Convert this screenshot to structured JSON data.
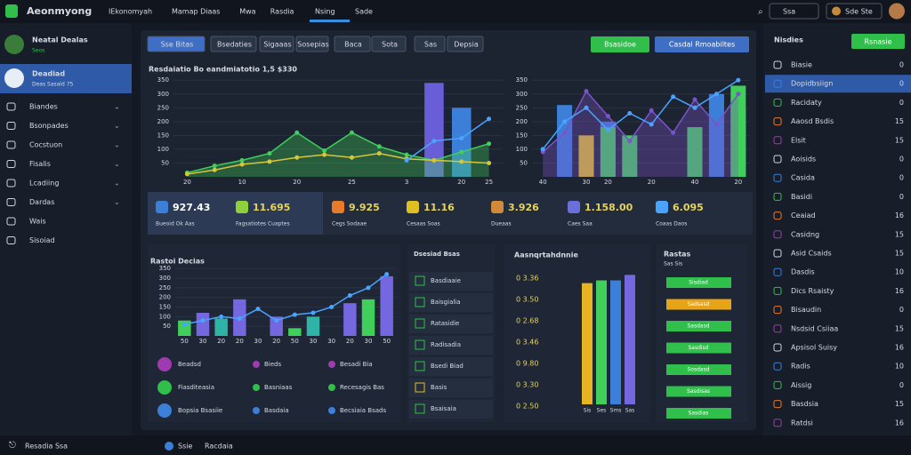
{
  "topbar": {
    "brand": "Aeonmyong",
    "menu": [
      "IEkonomyah",
      "Mamap Diaas",
      "Mwa",
      "Rasdia",
      "Nsing",
      "Sade"
    ],
    "active": 4,
    "search": "Ssa",
    "user": "Sde Ste"
  },
  "sidebar": {
    "profile_name": "Neatal Dealas",
    "profile_sub": "Seos",
    "active_title": "Deadiad",
    "active_sub": "Deas Sasald 75",
    "items": [
      "Biandes",
      "Bsonpades",
      "Cocstuon",
      "Fisalis",
      "Lcadiing",
      "Dardas",
      "Wais",
      "Sisoiad"
    ]
  },
  "toolbar": {
    "buttons": [
      "Sse Bitas",
      "Bsedaties",
      "Sigaaas",
      "Sosepias",
      "Baca",
      "Sota",
      "Sas",
      "Depsia"
    ],
    "actions": [
      "Bsasidoe",
      "Casdal Rmoabiltes"
    ]
  },
  "chart_a": {
    "type": "combo",
    "title": "Resdaiatio Bo eandmiatotio 1,5 $330",
    "categories": [
      "20",
      null,
      "10",
      null,
      "20",
      null,
      "25",
      null,
      "3",
      null,
      "20",
      "25"
    ],
    "ylim": [
      0,
      370
    ],
    "yticks": [
      50,
      100,
      150,
      200,
      250,
      300,
      350
    ],
    "series": [
      {
        "name": "Purple",
        "kind": "bar",
        "color": "#6a5ed8",
        "values": [
          null,
          null,
          null,
          null,
          null,
          null,
          null,
          null,
          null,
          340,
          null,
          null
        ]
      },
      {
        "name": "Blue",
        "kind": "bar",
        "color": "#3b7fd9",
        "values": [
          null,
          null,
          null,
          null,
          null,
          null,
          null,
          null,
          null,
          null,
          250,
          null
        ]
      },
      {
        "name": "Green",
        "kind": "area",
        "color": "#3fcf5a",
        "values": [
          15,
          40,
          60,
          85,
          160,
          95,
          160,
          110,
          80,
          60,
          90,
          120
        ]
      },
      {
        "name": "Yellow",
        "kind": "line",
        "color": "#d8c63a",
        "values": [
          10,
          25,
          45,
          55,
          70,
          80,
          70,
          85,
          65,
          60,
          55,
          50
        ]
      },
      {
        "name": "Sky",
        "kind": "line",
        "color": "#4aa3ff",
        "values": [
          null,
          null,
          null,
          null,
          null,
          null,
          null,
          null,
          60,
          130,
          140,
          210
        ]
      }
    ]
  },
  "chart_b": {
    "type": "combo",
    "categories": [
      "40",
      null,
      "30",
      "20",
      null,
      "20",
      null,
      "40",
      null,
      "20"
    ],
    "ylim": [
      0,
      370
    ],
    "yticks": [
      50,
      100,
      150,
      200,
      250,
      300,
      350
    ],
    "series": [
      {
        "name": "Bars",
        "kind": "bar",
        "color": "#3b7fd9",
        "values": [
          null,
          260,
          null,
          200,
          null,
          null,
          null,
          null,
          300,
          250
        ]
      },
      {
        "name": "Yellow bars",
        "kind": "bar",
        "color": "#e0c020",
        "values": [
          null,
          null,
          150,
          null,
          null,
          null,
          null,
          null,
          null,
          null
        ]
      },
      {
        "name": "Green bars",
        "kind": "bar",
        "color": "#3fcf5a",
        "values": [
          null,
          null,
          null,
          180,
          150,
          null,
          null,
          180,
          null,
          330
        ]
      },
      {
        "name": "Area",
        "kind": "area",
        "color": "#7a55c9",
        "values": [
          90,
          160,
          310,
          220,
          130,
          240,
          160,
          280,
          190,
          300
        ]
      },
      {
        "name": "Line",
        "kind": "line",
        "color": "#4aa3ff",
        "values": [
          100,
          200,
          250,
          170,
          230,
          190,
          290,
          250,
          300,
          350
        ]
      }
    ]
  },
  "stats": [
    {
      "value": "927.43",
      "label": "Bueoid Ok Aas"
    },
    {
      "value": "11.695",
      "label": "Fagsatiotes Cuaptes"
    },
    {
      "value": "9.925",
      "label": "Cegs Sodaae"
    },
    {
      "value": "11.16",
      "label": "Cesaas Soas"
    },
    {
      "value": "3.926",
      "label": "Dueaas"
    },
    {
      "value": "1.158.00",
      "label": "Caes Saa"
    },
    {
      "value": "6.095",
      "label": "Coaas Daos"
    }
  ],
  "chart_c": {
    "type": "combo",
    "title": "Rastoi Decias",
    "categories": [
      "50",
      "30",
      "20",
      "20",
      "30",
      "20",
      "50",
      "30",
      "30",
      "20",
      "30",
      "50"
    ],
    "ylim": [
      0,
      360
    ],
    "yticks": [
      50,
      100,
      150,
      200,
      250,
      300,
      350
    ],
    "series": [
      {
        "name": "Green",
        "kind": "bar",
        "color": "#3fcf5a",
        "values": [
          80,
          null,
          null,
          null,
          null,
          null,
          40,
          null,
          null,
          null,
          190,
          null
        ]
      },
      {
        "name": "Purple",
        "kind": "bar",
        "color": "#7467e0",
        "values": [
          null,
          120,
          null,
          190,
          null,
          100,
          null,
          null,
          null,
          170,
          null,
          310
        ]
      },
      {
        "name": "Teal",
        "kind": "bar",
        "color": "#2fb3a6",
        "values": [
          null,
          null,
          90,
          null,
          null,
          null,
          null,
          100,
          null,
          null,
          null,
          null
        ]
      },
      {
        "name": "Line",
        "kind": "line",
        "color": "#4aa3ff",
        "values": [
          60,
          80,
          100,
          90,
          140,
          80,
          110,
          120,
          150,
          210,
          250,
          320
        ]
      }
    ]
  },
  "mini_list": [
    {
      "a": "Beadsd",
      "b": "Bieds",
      "c": "Besadi Bia"
    },
    {
      "a": "Fiasditeasia",
      "b": "Basniaas",
      "c": "Recesagis Bas"
    },
    {
      "a": "Bopsia Bsasiie",
      "b": "Basdaia",
      "c": "Becsiaia Bsads"
    }
  ],
  "list_panel": {
    "title": "Dsesiad Bsas",
    "items": [
      "Basdiaaie",
      "Baisgialia",
      "Ratasidie",
      "Radisadia",
      "Bsedi Biad",
      "Basis",
      "Bsaisaia"
    ]
  },
  "chart_d": {
    "type": "bar",
    "title": "Aasnqrtahdnnie",
    "labels": [
      "0 3.36",
      "0 3.50",
      "0 2.68",
      "0 3.46",
      "0 9.80",
      "0 3.30",
      "0 2.50"
    ],
    "categories": [
      "Sis",
      "Ses",
      "Sms",
      "Sas"
    ],
    "colors": [
      "#e6b422",
      "#3fcf5a",
      "#3b7fd9",
      "#7467e0"
    ],
    "ylim": [
      0,
      100
    ],
    "values": [
      88,
      90,
      90,
      94
    ]
  },
  "progress": {
    "title": "Rastas",
    "sub": "Sas Sis",
    "items": [
      {
        "text": "Sisdiad",
        "color": "#2fbf4a"
      },
      {
        "text": "Sadsasd",
        "color": "#e8a417"
      },
      {
        "text": "Sasdasd",
        "color": "#2fbf4a"
      },
      {
        "text": "Sasdisd",
        "color": "#2fbf4a"
      },
      {
        "text": "Sosdasd",
        "color": "#2fbf4a"
      },
      {
        "text": "Sasdisas",
        "color": "#2fbf4a"
      },
      {
        "text": "Sasdias",
        "color": "#2fbf4a"
      }
    ]
  },
  "right": {
    "title": "Nisdies",
    "button": "Rsnasie",
    "items": [
      {
        "t": "Biasie",
        "n": "0"
      },
      {
        "t": "Dopidbsiign",
        "n": "0"
      },
      {
        "t": "Racidaty",
        "n": "0"
      },
      {
        "t": "Aaosd Bsdis",
        "n": "15"
      },
      {
        "t": "Elsit",
        "n": "15"
      },
      {
        "t": "Aoisids",
        "n": "0"
      },
      {
        "t": "Casida",
        "n": "0"
      },
      {
        "t": "Basidi",
        "n": "0"
      },
      {
        "t": "Ceaiad",
        "n": "16"
      },
      {
        "t": "Casidng",
        "n": "15"
      },
      {
        "t": "Asid Csaids",
        "n": "15"
      },
      {
        "t": "Dasdis",
        "n": "10"
      },
      {
        "t": "Dics Rsaisty",
        "n": "16"
      },
      {
        "t": "Bisaudin",
        "n": "0"
      },
      {
        "t": "Nsdsid Csiiaa",
        "n": "15"
      },
      {
        "t": "Apsisol Suisy",
        "n": "16"
      },
      {
        "t": "Radis",
        "n": "10"
      },
      {
        "t": "Aissig",
        "n": "0"
      },
      {
        "t": "Basdsia",
        "n": "15"
      },
      {
        "t": "Ratdsi",
        "n": "16"
      }
    ]
  },
  "bottom": {
    "left": "Resadia Ssa",
    "mid1": "Ssie",
    "mid2": "Racdaia"
  }
}
